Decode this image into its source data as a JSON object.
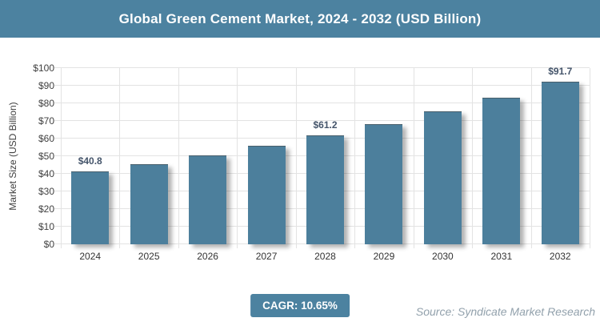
{
  "header": {
    "title": "Global Green Cement Market, 2024 - 2032 (USD Billion)"
  },
  "chart_data": {
    "type": "bar",
    "title": "Global Green Cement Market, 2024 - 2032 (USD Billion)",
    "categories": [
      "2024",
      "2025",
      "2026",
      "2027",
      "2028",
      "2029",
      "2030",
      "2031",
      "2032"
    ],
    "values": [
      40.8,
      45.1,
      50.0,
      55.3,
      61.2,
      67.7,
      74.9,
      82.9,
      91.7
    ],
    "data_labels": [
      "$40.8",
      null,
      null,
      null,
      "$61.2",
      null,
      null,
      null,
      "$91.7"
    ],
    "xlabel": "",
    "ylabel": "Market Size (USD Billion)",
    "ylim": [
      0,
      100
    ],
    "ytick_step": 10,
    "ytick_labels": [
      "$0",
      "$10",
      "$20",
      "$30",
      "$40",
      "$50",
      "$60",
      "$70",
      "$80",
      "$90",
      "$100"
    ],
    "grid": true,
    "legend": "none",
    "bar_color": "#4C7F9C"
  },
  "footer": {
    "cagr_label": "CAGR: 10.65%",
    "source": "Source: Syndicate Market Research"
  },
  "colors": {
    "header_bg": "#4C82A0",
    "bar": "#4C7F9C",
    "badge_bg": "#4C82A0",
    "grid": "#E3E3E3",
    "tick_text": "#404040",
    "data_label": "#44546A",
    "source_text": "#92A1AC"
  }
}
